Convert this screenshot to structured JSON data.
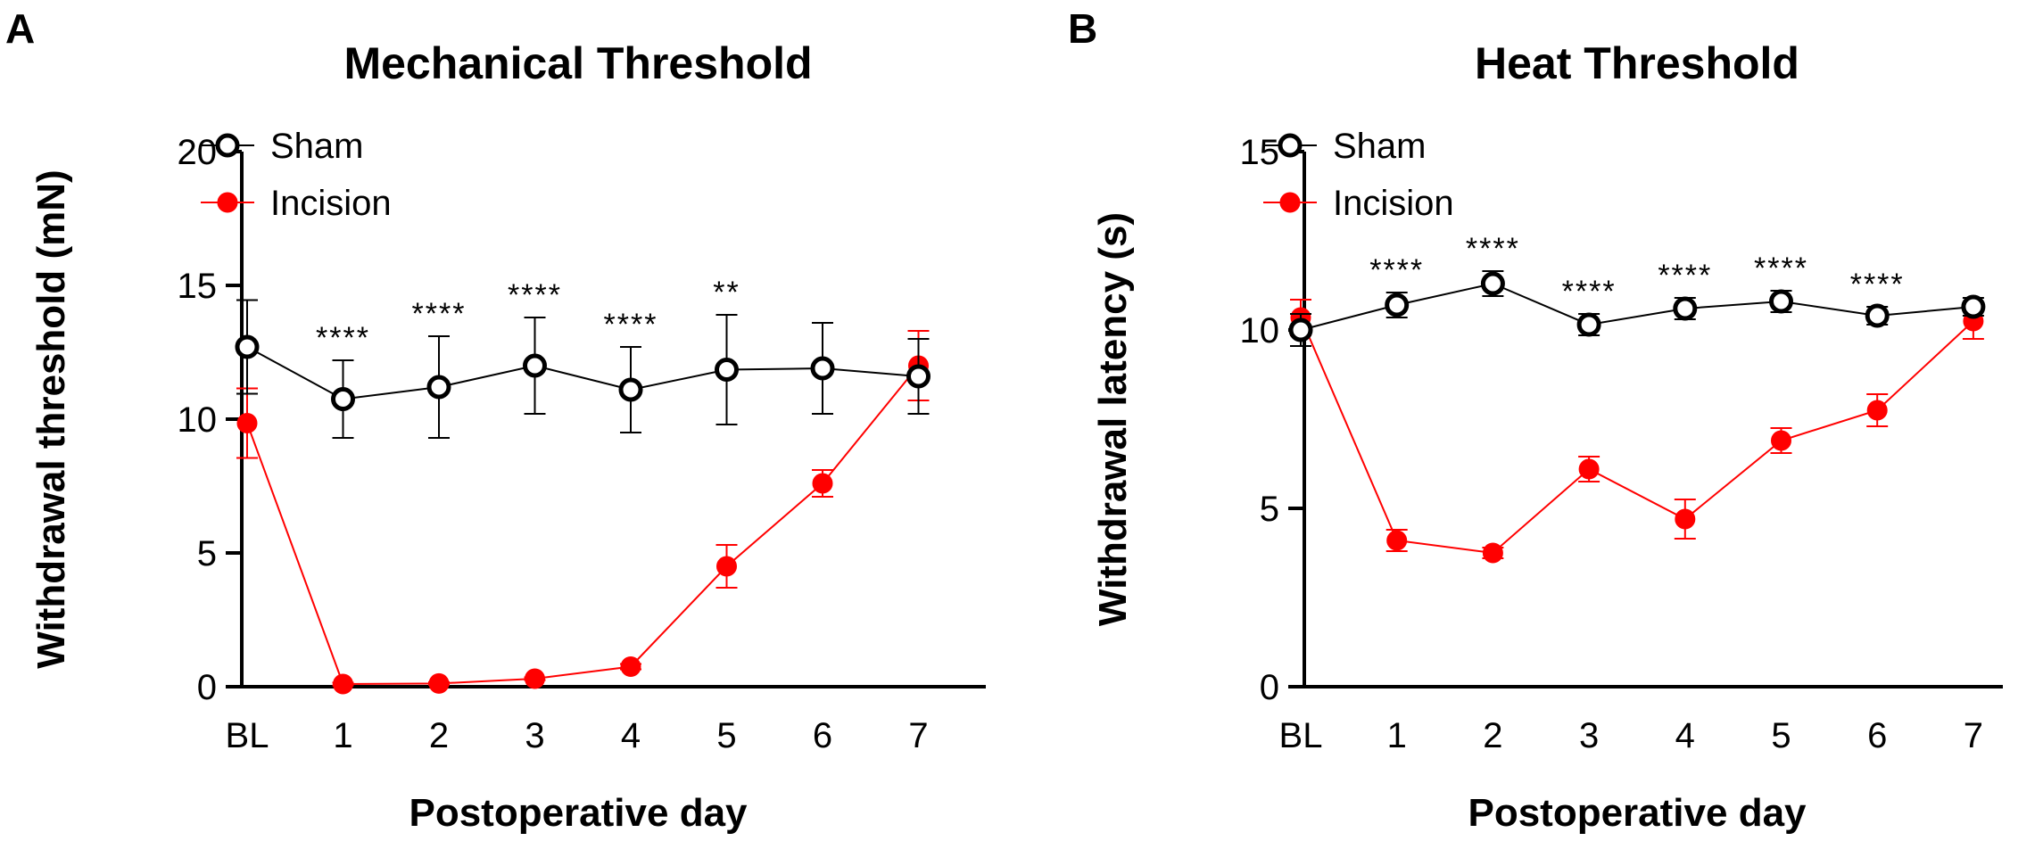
{
  "chart_data": [
    {
      "type": "line",
      "panel": "A",
      "title": "Mechanical Threshold",
      "xlabel": "Postoperative day",
      "ylabel": "Withdrawal threshold (mN)",
      "categories": [
        "BL",
        "1",
        "2",
        "3",
        "4",
        "5",
        "6",
        "7"
      ],
      "ylim": [
        0,
        20
      ],
      "yticks": [
        0,
        5,
        10,
        15,
        20
      ],
      "grid": false,
      "legend_position": "top-left",
      "series": [
        {
          "name": "Sham",
          "color": "#000000",
          "marker": "open-circle",
          "values": [
            12.7,
            10.75,
            11.2,
            12.0,
            11.1,
            11.85,
            11.9,
            11.6
          ],
          "error": [
            1.75,
            1.45,
            1.9,
            1.8,
            1.6,
            2.05,
            1.7,
            1.4
          ]
        },
        {
          "name": "Incision",
          "color": "#ff0000",
          "marker": "filled-circle",
          "values": [
            9.85,
            0.1,
            0.12,
            0.3,
            0.75,
            4.5,
            7.6,
            12.0
          ],
          "error": [
            1.3,
            0.05,
            0.05,
            0.05,
            0.1,
            0.8,
            0.5,
            1.3
          ]
        }
      ],
      "significance": [
        "",
        "****",
        "****",
        "****",
        "****",
        "**",
        "",
        ""
      ]
    },
    {
      "type": "line",
      "panel": "B",
      "title": "Heat Threshold",
      "xlabel": "Postoperative day",
      "ylabel": "Withdrawal latency (s)",
      "categories": [
        "BL",
        "1",
        "2",
        "3",
        "4",
        "5",
        "6",
        "7"
      ],
      "ylim": [
        0,
        15
      ],
      "yticks": [
        0,
        5,
        10,
        15
      ],
      "grid": false,
      "legend_position": "top-left",
      "series": [
        {
          "name": "Sham",
          "color": "#000000",
          "marker": "open-circle",
          "values": [
            10.0,
            10.7,
            11.3,
            10.15,
            10.6,
            10.8,
            10.4,
            10.65
          ],
          "error": [
            0.45,
            0.35,
            0.35,
            0.3,
            0.3,
            0.3,
            0.25,
            0.25
          ]
        },
        {
          "name": "Incision",
          "color": "#ff0000",
          "marker": "filled-circle",
          "values": [
            10.35,
            4.1,
            3.75,
            6.1,
            4.7,
            6.9,
            7.75,
            10.25
          ],
          "error": [
            0.5,
            0.3,
            0.15,
            0.35,
            0.55,
            0.35,
            0.45,
            0.5
          ]
        }
      ],
      "significance": [
        "",
        "****",
        "****",
        "****",
        "****",
        "****",
        "****",
        ""
      ]
    }
  ]
}
